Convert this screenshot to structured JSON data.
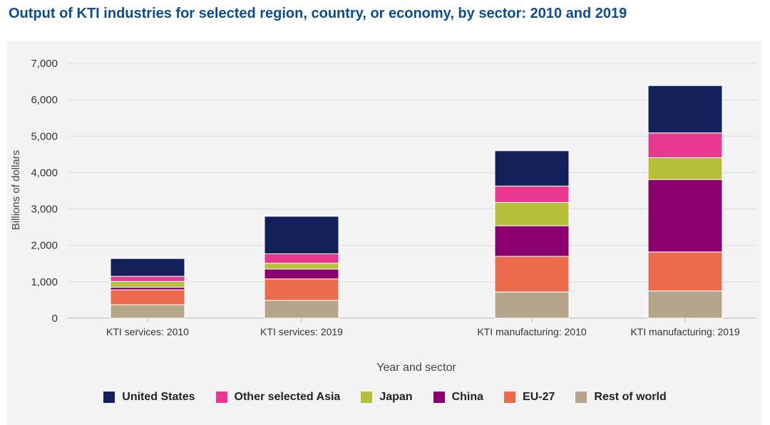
{
  "title": "Output of KTI industries for selected region, country, or economy, by sector: 2010 and 2019",
  "chart_data": {
    "type": "bar",
    "stacked": true,
    "title": "Output of KTI industries for selected region, country, or economy, by sector: 2010 and 2019",
    "xlabel": "Year and sector",
    "ylabel": "Billions of dollars",
    "ylim": [
      0,
      7000
    ],
    "yticks": [
      0,
      1000,
      2000,
      3000,
      4000,
      5000,
      6000,
      7000
    ],
    "ytick_labels": [
      "0",
      "1,000",
      "2,000",
      "3,000",
      "4,000",
      "5,000",
      "6,000",
      "7,000"
    ],
    "grid": true,
    "legend_position": "bottom",
    "categories": [
      "KTI services: 2010",
      "KTI services: 2019",
      "KTI manufacturing: 2010",
      "KTI manufacturing: 2019"
    ],
    "series": [
      {
        "name": "Rest of world",
        "color": "#b5a58a",
        "values": [
          370,
          490,
          720,
          750
        ]
      },
      {
        "name": "EU-27",
        "color": "#ec6b4d",
        "values": [
          410,
          590,
          980,
          1070
        ]
      },
      {
        "name": "China",
        "color": "#8b006f",
        "values": [
          70,
          270,
          840,
          1990
        ]
      },
      {
        "name": "Japan",
        "color": "#b6bf39",
        "values": [
          160,
          160,
          640,
          600
        ]
      },
      {
        "name": "Other selected Asia",
        "color": "#e8388f",
        "values": [
          140,
          260,
          450,
          680
        ]
      },
      {
        "name": "United States",
        "color": "#13205a",
        "values": [
          490,
          1030,
          970,
          1300
        ]
      }
    ],
    "legend_order": [
      "United States",
      "Other selected Asia",
      "Japan",
      "China",
      "EU-27",
      "Rest of world"
    ]
  }
}
